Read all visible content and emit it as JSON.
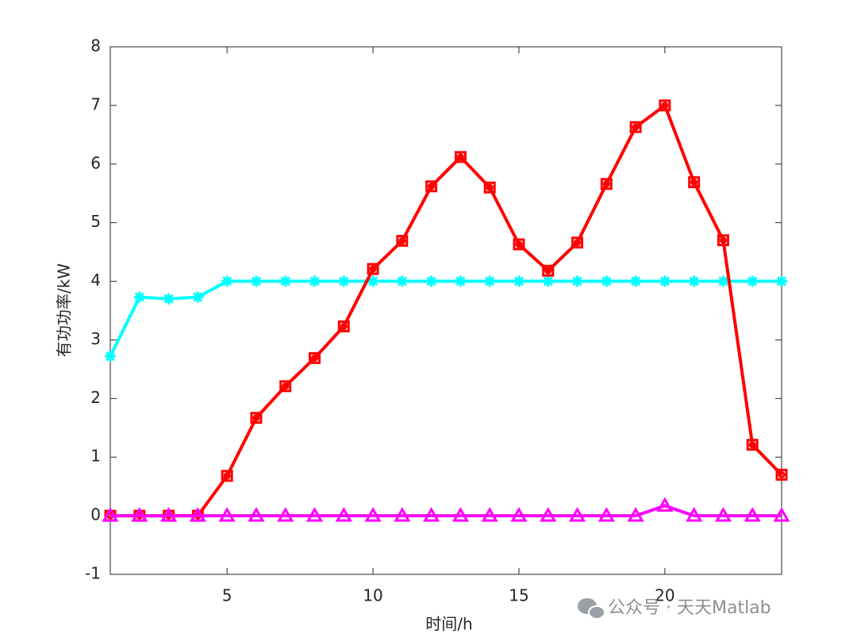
{
  "chart_data": {
    "type": "line",
    "xlabel": "时间/h",
    "ylabel": "有功功率/kW",
    "x": [
      1,
      2,
      3,
      4,
      5,
      6,
      7,
      8,
      9,
      10,
      11,
      12,
      13,
      14,
      15,
      16,
      17,
      18,
      19,
      20,
      21,
      22,
      23,
      24
    ],
    "series": [
      {
        "color": "#00ffff",
        "marker": "asterisk",
        "values": [
          2.72,
          3.73,
          3.7,
          3.73,
          4,
          4,
          4,
          4,
          4,
          4,
          4,
          4,
          4,
          4,
          4,
          4,
          4,
          4,
          4,
          4,
          4,
          4,
          4,
          4
        ]
      },
      {
        "color": "#ff0000",
        "marker": "square",
        "values": [
          0,
          0,
          0,
          0,
          0.68,
          1.67,
          2.21,
          2.69,
          3.23,
          4.21,
          4.69,
          5.62,
          6.12,
          5.6,
          4.63,
          4.18,
          4.66,
          5.66,
          6.63,
          7.0,
          5.69,
          4.7,
          1.21,
          0.7
        ]
      },
      {
        "color": "#ff00ff",
        "marker": "triangle",
        "values": [
          0,
          0,
          0,
          0,
          0,
          0,
          0,
          0,
          0,
          0,
          0,
          0,
          0,
          0,
          0,
          0,
          0,
          0,
          0,
          0.17,
          0,
          0,
          0,
          0
        ]
      }
    ],
    "xlim": [
      1,
      24
    ],
    "xticks": [
      5,
      10,
      15,
      20
    ],
    "ylim": [
      -1,
      8
    ],
    "yticks": [
      -1,
      0,
      1,
      2,
      3,
      4,
      5,
      6,
      7,
      8
    ],
    "grid": false,
    "watermark": "公众号 · 天天Matlab"
  }
}
